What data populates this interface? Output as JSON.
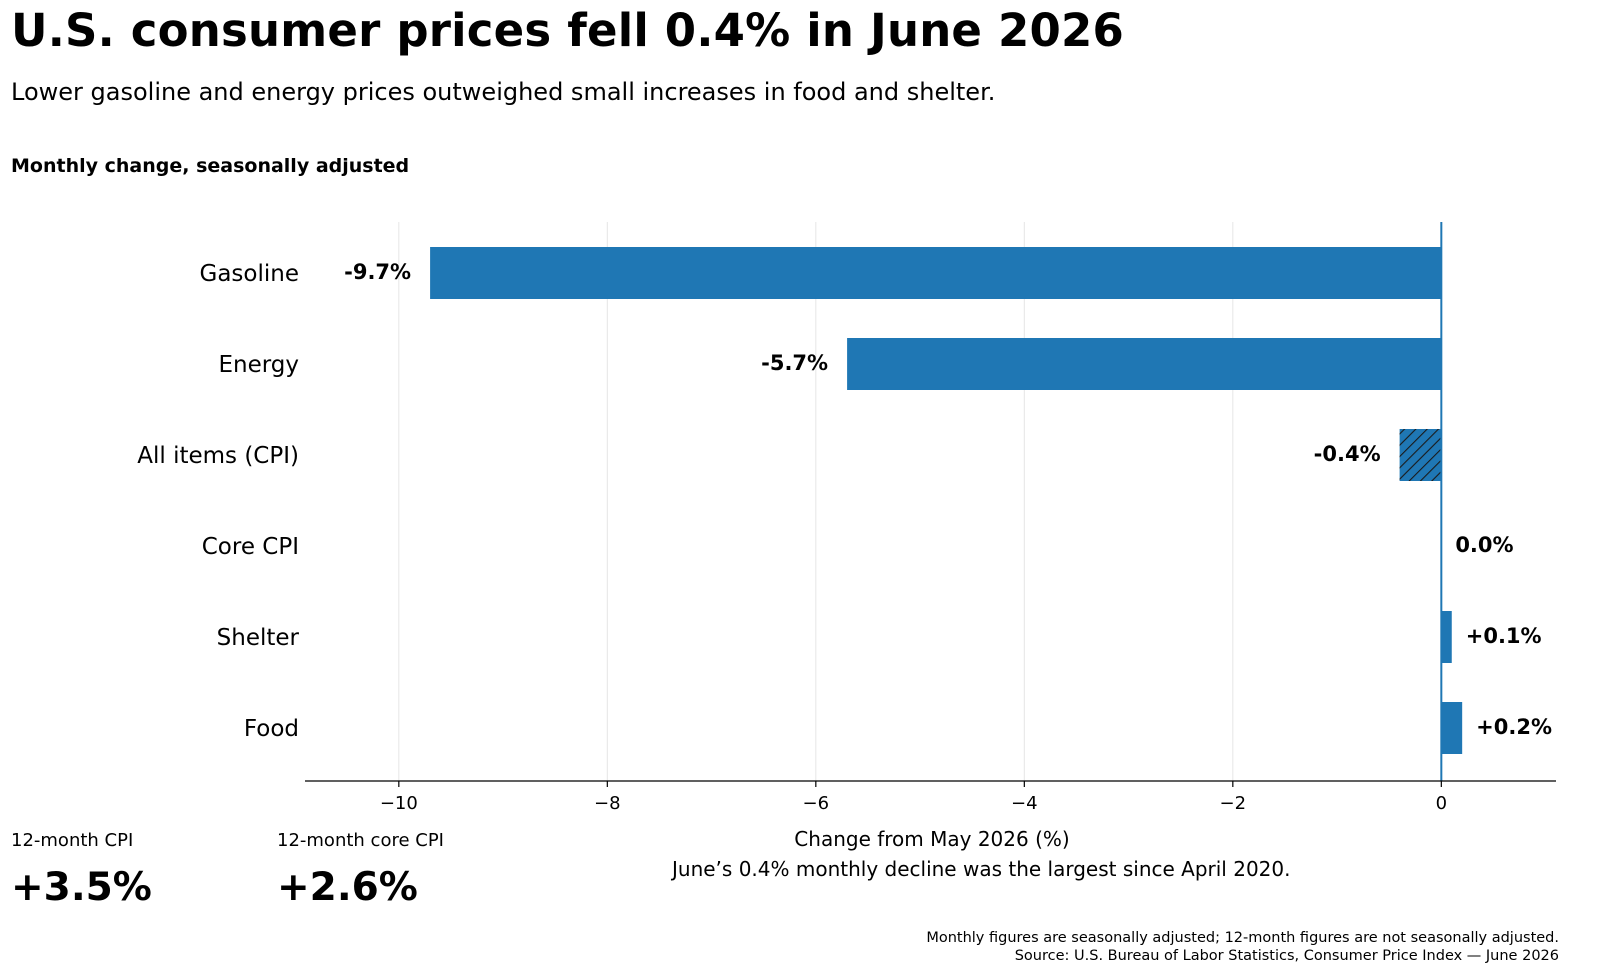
{
  "header": {
    "title": "U.S. consumer prices fell 0.4% in June 2026",
    "subtitle": "Lower gasoline and energy prices outweighed small increases in food and shelter.",
    "chart_label": "Monthly change, seasonally adjusted"
  },
  "chart_data": {
    "type": "bar",
    "orientation": "horizontal",
    "categories": [
      "Gasoline",
      "Energy",
      "All items (CPI)",
      "Core CPI",
      "Shelter",
      "Food"
    ],
    "values": [
      -9.7,
      -5.7,
      -0.4,
      0.0,
      0.1,
      0.2
    ],
    "data_labels": [
      "-9.7%",
      "-5.7%",
      "-0.4%",
      "0.0%",
      "+0.1%",
      "+0.2%"
    ],
    "highlighted_category": "All items (CPI)",
    "xlabel": "Change from May 2026 (%)",
    "ylabel": "",
    "xlim": [
      -10.9,
      1.1
    ],
    "xticks": [
      -10,
      -8,
      -6,
      -4,
      -2,
      0
    ],
    "xtick_labels": [
      "−10",
      "−8",
      "−6",
      "−4",
      "−2",
      "0"
    ],
    "grid": "vertical",
    "legend": "none",
    "bar_color": "#1f77b4"
  },
  "kpis": [
    {
      "label": "12-month CPI",
      "value": "+3.5%"
    },
    {
      "label": "12-month core CPI",
      "value": "+2.6%"
    }
  ],
  "annotation": "June’s 0.4% monthly decline was the largest since April 2020.",
  "footnotes": [
    "Monthly figures are seasonally adjusted; 12-month figures are not seasonally adjusted.",
    "Source: U.S. Bureau of Labor Statistics, Consumer Price Index — June 2026"
  ]
}
